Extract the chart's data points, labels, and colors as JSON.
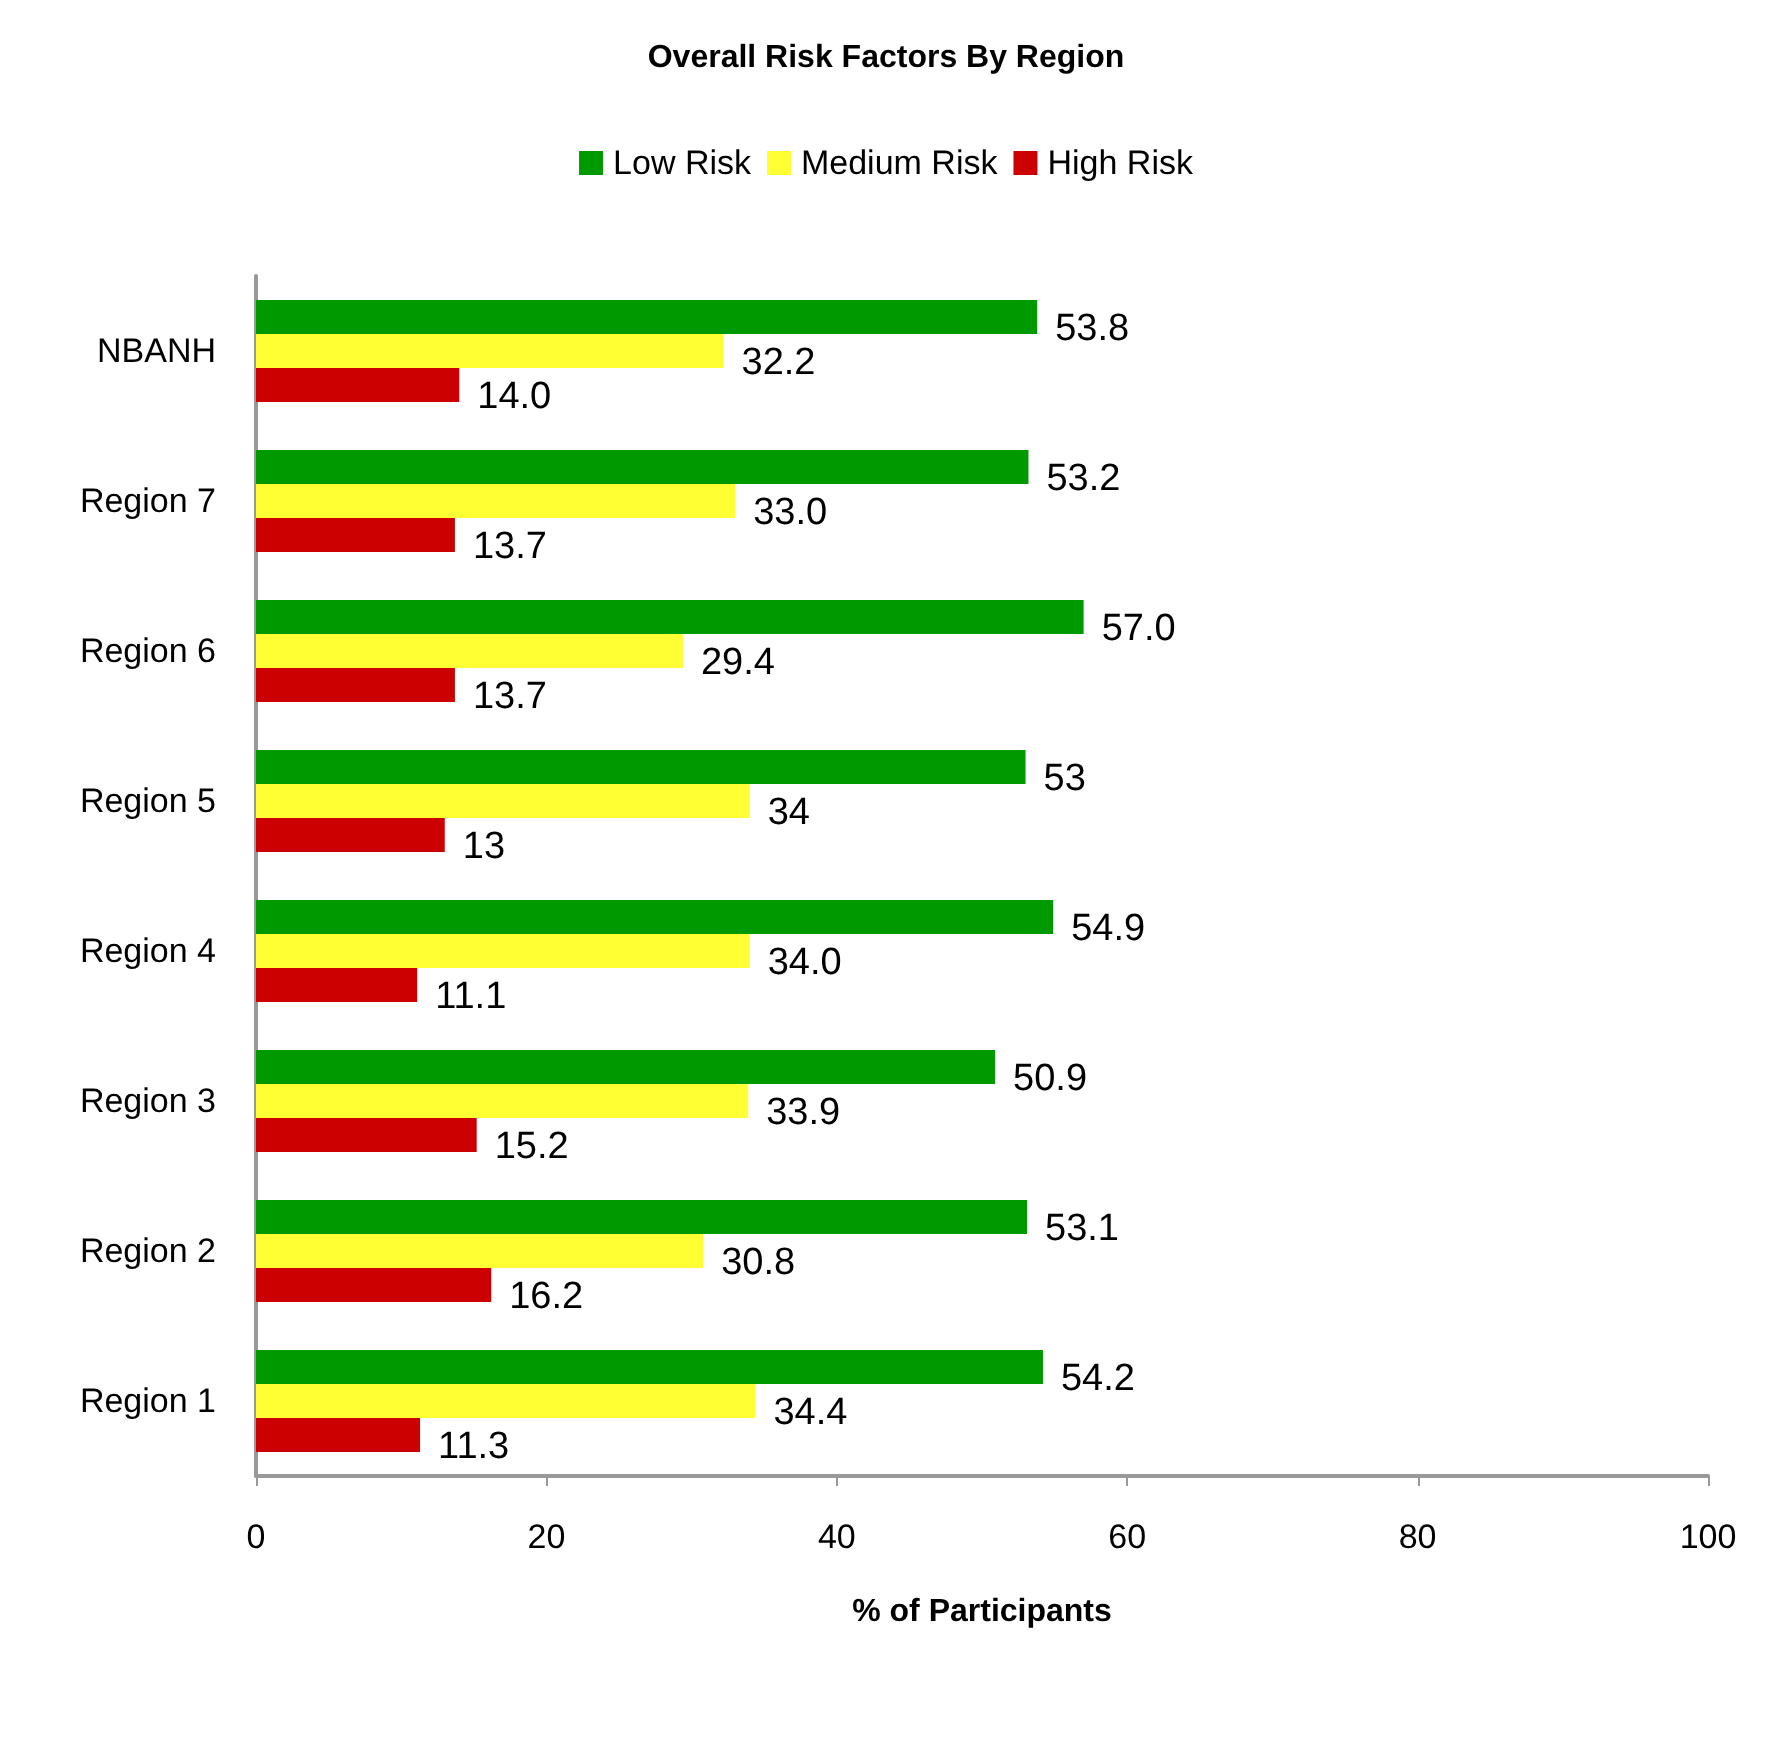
{
  "chart_data": {
    "type": "bar",
    "orientation": "horizontal",
    "title": "Overall Risk Factors By Region",
    "xlabel": "% of Participants",
    "categories": [
      "NBANH",
      "Region 7",
      "Region 6",
      "Region 5",
      "Region 4",
      "Region 3",
      "Region 2",
      "Region 1"
    ],
    "series": [
      {
        "name": "Low Risk",
        "color": "#009900",
        "values": [
          53.8,
          53.2,
          57.0,
          53,
          54.9,
          50.9,
          53.1,
          54.2
        ],
        "value_labels": [
          "53.8",
          "53.2",
          "57.0",
          "53",
          "54.9",
          "50.9",
          "53.1",
          "54.2"
        ]
      },
      {
        "name": "Medium Risk",
        "color": "#ffff33",
        "values": [
          32.2,
          33.0,
          29.4,
          34,
          34.0,
          33.9,
          30.8,
          34.4
        ],
        "value_labels": [
          "32.2",
          "33.0",
          "29.4",
          "34",
          "34.0",
          "33.9",
          "30.8",
          "34.4"
        ]
      },
      {
        "name": "High Risk",
        "color": "#cc0000",
        "values": [
          14.0,
          13.7,
          13.7,
          13,
          11.1,
          15.2,
          16.2,
          11.3
        ],
        "value_labels": [
          "14.0",
          "13.7",
          "13.7",
          "13",
          "11.1",
          "15.2",
          "16.2",
          "11.3"
        ]
      }
    ],
    "xlim": [
      0,
      100
    ],
    "xticks": [
      0,
      20,
      40,
      60,
      80,
      100
    ],
    "grid": false,
    "legend": "top"
  }
}
